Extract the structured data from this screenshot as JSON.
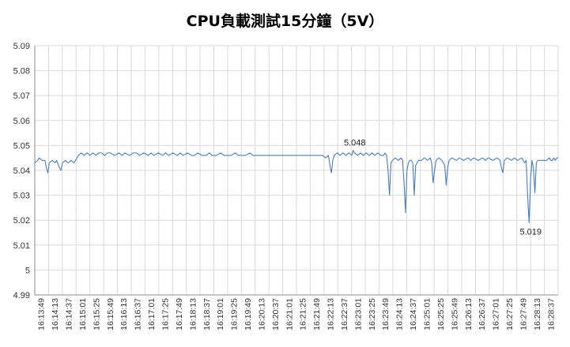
{
  "chart_data": {
    "type": "line",
    "title": "CPU負載測試15分鐘（5V）",
    "xlabel": "",
    "ylabel": "",
    "ylim": [
      4.99,
      5.09
    ],
    "yticks": [
      "4.99",
      "5",
      "5.01",
      "5.02",
      "5.03",
      "5.04",
      "5.05",
      "5.06",
      "5.07",
      "5.08",
      "5.09"
    ],
    "xticks": [
      "16:13:49",
      "16:14:13",
      "16:14:37",
      "16:15:01",
      "16:15:25",
      "16:15:49",
      "16:16:13",
      "16:16:37",
      "16:17:01",
      "16:17:25",
      "16:17:49",
      "16:18:13",
      "16:18:37",
      "16:19:01",
      "16:19:25",
      "16:19:49",
      "16:20:13",
      "16:20:37",
      "16:21:01",
      "16:21:25",
      "16:21:49",
      "16:22:13",
      "16:22:37",
      "16:23:01",
      "16:23:25",
      "16:23:49",
      "16:24:13",
      "16:24:37",
      "16:25:01",
      "16:25:25",
      "16:25:49",
      "16:26:13",
      "16:26:37",
      "16:27:01",
      "16:27:25",
      "16:27:49",
      "16:28:13",
      "16:28:37"
    ],
    "grid": true,
    "legend": "none",
    "colors": {
      "line": "#4a7ebb"
    },
    "series": [
      {
        "points": [
          [
            0,
            5.043
          ],
          [
            2,
            5.044
          ],
          [
            3,
            5.045
          ],
          [
            5,
            5.044
          ],
          [
            7,
            5.044
          ],
          [
            8,
            5.041
          ],
          [
            9,
            5.039
          ],
          [
            10,
            5.043
          ],
          [
            12,
            5.044
          ],
          [
            14,
            5.043
          ],
          [
            15,
            5.044
          ],
          [
            17,
            5.041
          ],
          [
            18,
            5.04
          ],
          [
            19,
            5.043
          ],
          [
            21,
            5.044
          ],
          [
            23,
            5.043
          ],
          [
            25,
            5.044
          ],
          [
            27,
            5.043
          ],
          [
            28,
            5.044
          ],
          [
            30,
            5.046
          ],
          [
            32,
            5.047
          ],
          [
            34,
            5.046
          ],
          [
            36,
            5.047
          ],
          [
            38,
            5.046
          ],
          [
            40,
            5.047
          ],
          [
            42,
            5.046
          ],
          [
            44,
            5.047
          ],
          [
            46,
            5.047
          ],
          [
            48,
            5.046
          ],
          [
            50,
            5.047
          ],
          [
            52,
            5.047
          ],
          [
            55,
            5.046
          ],
          [
            58,
            5.047
          ],
          [
            60,
            5.046
          ],
          [
            62,
            5.047
          ],
          [
            65,
            5.046
          ],
          [
            68,
            5.047
          ],
          [
            70,
            5.047
          ],
          [
            72,
            5.046
          ],
          [
            75,
            5.047
          ],
          [
            78,
            5.046
          ],
          [
            80,
            5.047
          ],
          [
            82,
            5.046
          ],
          [
            85,
            5.047
          ],
          [
            88,
            5.046
          ],
          [
            90,
            5.047
          ],
          [
            92,
            5.046
          ],
          [
            95,
            5.047
          ],
          [
            98,
            5.046
          ],
          [
            100,
            5.047
          ],
          [
            102,
            5.046
          ],
          [
            105,
            5.047
          ],
          [
            108,
            5.046
          ],
          [
            110,
            5.046
          ],
          [
            112,
            5.047
          ],
          [
            115,
            5.046
          ],
          [
            118,
            5.046
          ],
          [
            120,
            5.047
          ],
          [
            122,
            5.046
          ],
          [
            125,
            5.046
          ],
          [
            128,
            5.047
          ],
          [
            130,
            5.046
          ],
          [
            132,
            5.046
          ],
          [
            135,
            5.046
          ],
          [
            138,
            5.047
          ],
          [
            140,
            5.046
          ],
          [
            142,
            5.046
          ],
          [
            145,
            5.046
          ],
          [
            148,
            5.047
          ],
          [
            150,
            5.046
          ],
          [
            152,
            5.046
          ],
          [
            155,
            5.046
          ],
          [
            158,
            5.046
          ],
          [
            160,
            5.046
          ],
          [
            162,
            5.046
          ],
          [
            165,
            5.046
          ],
          [
            168,
            5.046
          ],
          [
            170,
            5.046
          ],
          [
            172,
            5.046
          ],
          [
            175,
            5.046
          ],
          [
            178,
            5.046
          ],
          [
            180,
            5.046
          ],
          [
            182,
            5.046
          ],
          [
            185,
            5.046
          ],
          [
            188,
            5.046
          ],
          [
            190,
            5.046
          ],
          [
            192,
            5.046
          ],
          [
            195,
            5.046
          ],
          [
            198,
            5.046
          ],
          [
            200,
            5.045
          ],
          [
            202,
            5.046
          ],
          [
            203,
            5.042
          ],
          [
            204,
            5.039
          ],
          [
            205,
            5.044
          ],
          [
            206,
            5.046
          ],
          [
            208,
            5.047
          ],
          [
            210,
            5.046
          ],
          [
            212,
            5.047
          ],
          [
            214,
            5.046
          ],
          [
            216,
            5.047
          ],
          [
            218,
            5.046
          ],
          [
            219,
            5.048
          ],
          [
            220,
            5.047
          ],
          [
            222,
            5.046
          ],
          [
            224,
            5.047
          ],
          [
            226,
            5.046
          ],
          [
            228,
            5.047
          ],
          [
            230,
            5.046
          ],
          [
            232,
            5.047
          ],
          [
            234,
            5.046
          ],
          [
            236,
            5.047
          ],
          [
            238,
            5.046
          ],
          [
            240,
            5.046
          ],
          [
            241,
            5.047
          ],
          [
            242,
            5.046
          ],
          [
            243,
            5.04
          ],
          [
            244,
            5.03
          ],
          [
            245,
            5.043
          ],
          [
            246,
            5.044
          ],
          [
            248,
            5.045
          ],
          [
            250,
            5.044
          ],
          [
            252,
            5.045
          ],
          [
            253,
            5.044
          ],
          [
            254,
            5.035
          ],
          [
            255,
            5.023
          ],
          [
            256,
            5.04
          ],
          [
            257,
            5.043
          ],
          [
            258,
            5.044
          ],
          [
            259,
            5.044
          ],
          [
            260,
            5.043
          ],
          [
            261,
            5.03
          ],
          [
            262,
            5.042
          ],
          [
            264,
            5.044
          ],
          [
            266,
            5.044
          ],
          [
            268,
            5.045
          ],
          [
            270,
            5.044
          ],
          [
            272,
            5.045
          ],
          [
            273,
            5.043
          ],
          [
            274,
            5.035
          ],
          [
            275,
            5.04
          ],
          [
            276,
            5.044
          ],
          [
            278,
            5.045
          ],
          [
            280,
            5.044
          ],
          [
            282,
            5.042
          ],
          [
            283,
            5.034
          ],
          [
            284,
            5.041
          ],
          [
            285,
            5.044
          ],
          [
            287,
            5.045
          ],
          [
            290,
            5.044
          ],
          [
            292,
            5.045
          ],
          [
            295,
            5.044
          ],
          [
            298,
            5.045
          ],
          [
            300,
            5.044
          ],
          [
            302,
            5.045
          ],
          [
            305,
            5.044
          ],
          [
            308,
            5.045
          ],
          [
            310,
            5.044
          ],
          [
            312,
            5.045
          ],
          [
            315,
            5.044
          ],
          [
            318,
            5.045
          ],
          [
            320,
            5.044
          ],
          [
            321,
            5.041
          ],
          [
            322,
            5.039
          ],
          [
            323,
            5.044
          ],
          [
            325,
            5.045
          ],
          [
            328,
            5.044
          ],
          [
            330,
            5.045
          ],
          [
            332,
            5.044
          ],
          [
            335,
            5.045
          ],
          [
            337,
            5.043
          ],
          [
            338,
            5.044
          ],
          [
            339,
            5.03
          ],
          [
            340,
            5.019
          ],
          [
            341,
            5.036
          ],
          [
            342,
            5.044
          ],
          [
            343,
            5.041
          ],
          [
            344,
            5.031
          ],
          [
            345,
            5.043
          ],
          [
            346,
            5.044
          ],
          [
            348,
            5.044
          ],
          [
            350,
            5.044
          ],
          [
            352,
            5.044
          ],
          [
            354,
            5.045
          ],
          [
            355,
            5.044
          ],
          [
            356,
            5.044
          ],
          [
            357,
            5.045
          ],
          [
            358,
            5.044
          ],
          [
            359,
            5.045
          ],
          [
            360,
            5.045
          ]
        ]
      }
    ],
    "annotations": [
      {
        "text": "5.048",
        "x": 219,
        "y": 5.048
      },
      {
        "text": "5.019",
        "x": 340,
        "y": 5.019
      }
    ],
    "x_total_steps": 360
  }
}
